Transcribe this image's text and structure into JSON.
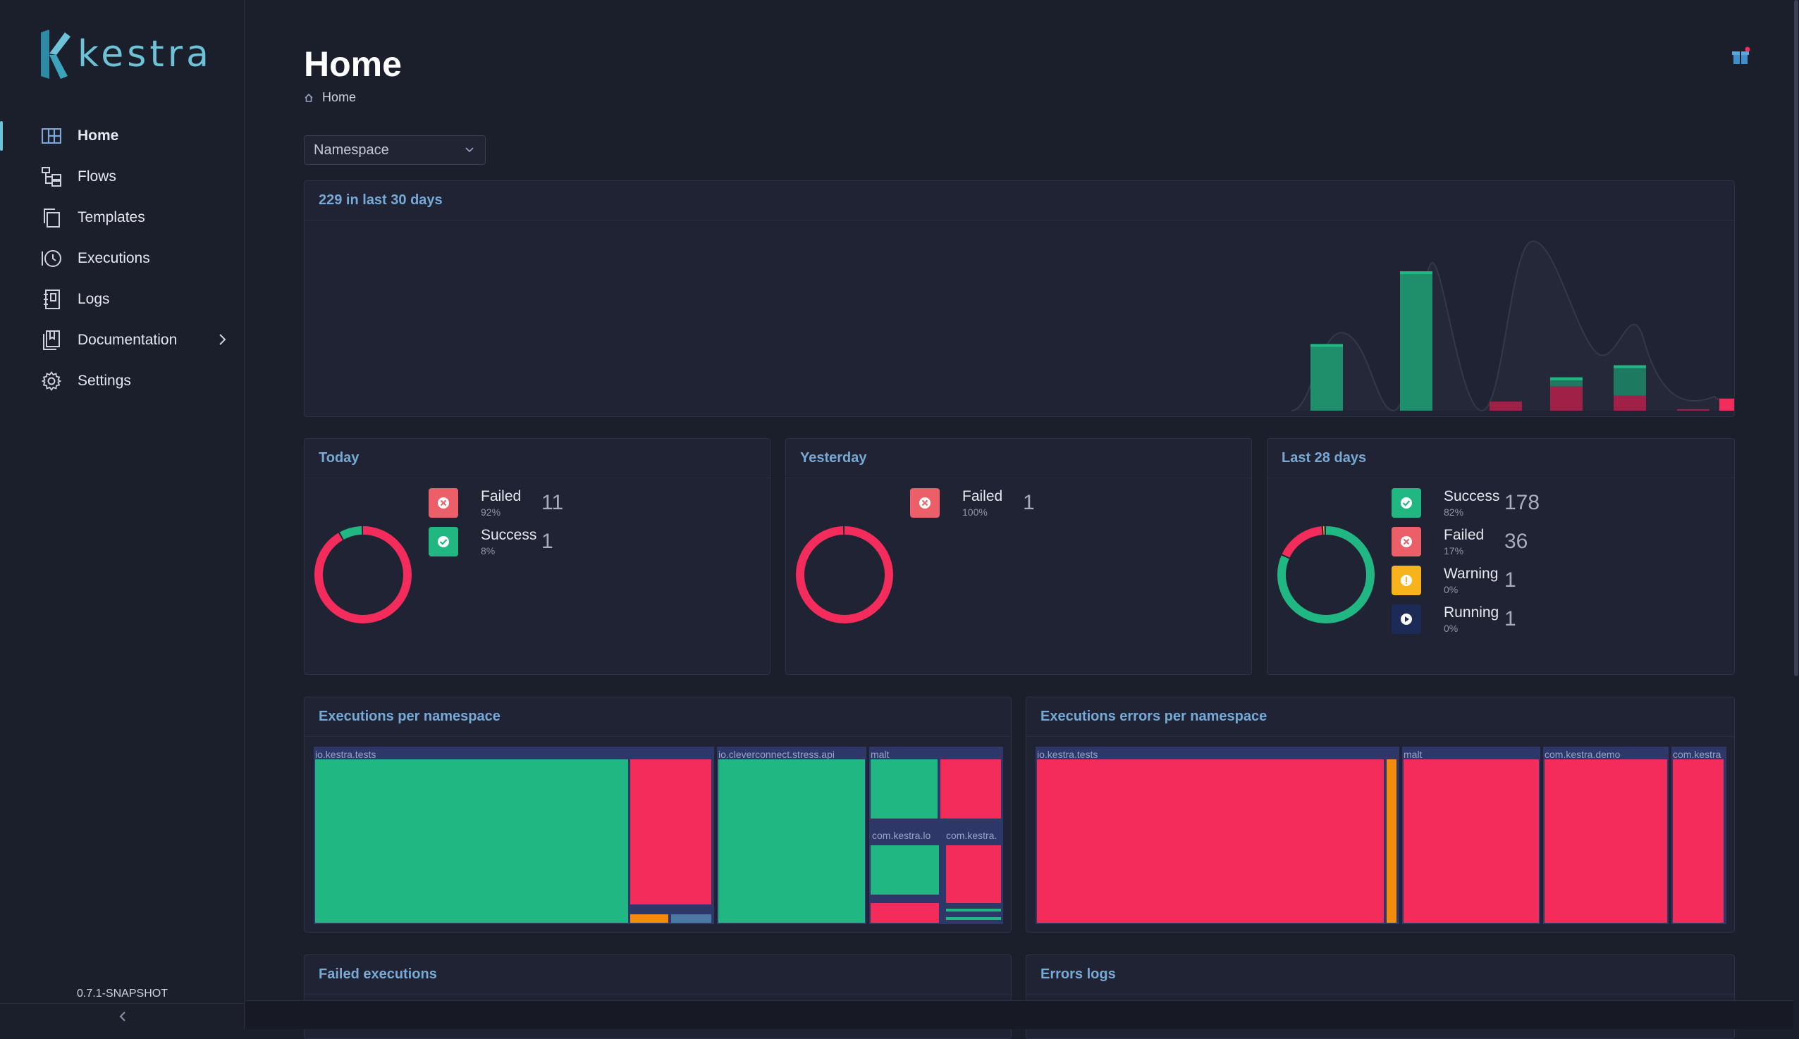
{
  "app": {
    "name": "kestra",
    "version": "0.7.1-SNAPSHOT"
  },
  "colors": {
    "accent": "#6ec2d8",
    "success": "#21b783",
    "failed": "#f42c5b",
    "warning": "#f6b31c",
    "running": "#1c2a58",
    "orange": "#f58b0b",
    "steel": "#4c79a4"
  },
  "sidebar": {
    "items": [
      {
        "label": "Home",
        "icon": "grid-icon",
        "active": true
      },
      {
        "label": "Flows",
        "icon": "flow-tree-icon"
      },
      {
        "label": "Templates",
        "icon": "copy-icon"
      },
      {
        "label": "Executions",
        "icon": "history-icon"
      },
      {
        "label": "Logs",
        "icon": "notebook-icon"
      },
      {
        "label": "Documentation",
        "icon": "book-icon",
        "has_submenu": true
      },
      {
        "label": "Settings",
        "icon": "gear-icon"
      }
    ],
    "collapse_icon": "chevron-left-icon"
  },
  "header": {
    "title": "Home",
    "breadcrumb": "Home",
    "notification_icon": "gift-icon"
  },
  "filter": {
    "namespace_placeholder": "Namespace"
  },
  "overview": {
    "title": "229 in last 30 days"
  },
  "chart_data": {
    "type": "bar",
    "title": "229 in last 30 days",
    "grid": false,
    "legend": "none",
    "series": [
      {
        "name": "SUCCESS",
        "values": [
          22,
          46,
          0,
          3,
          10,
          0,
          0
        ]
      },
      {
        "name": "FAILED",
        "values": [
          0,
          0,
          3,
          8,
          5,
          0.5,
          4
        ]
      }
    ],
    "ylim": [
      0,
      50
    ]
  },
  "today": {
    "title": "Today",
    "items": [
      {
        "label": "Failed",
        "pct": "92%",
        "count": "11",
        "status": "failed",
        "icon": "x-circle-icon",
        "fraction": 0.92
      },
      {
        "label": "Success",
        "pct": "8%",
        "count": "1",
        "status": "success",
        "icon": "check-circle-icon",
        "fraction": 0.08
      }
    ]
  },
  "yesterday": {
    "title": "Yesterday",
    "items": [
      {
        "label": "Failed",
        "pct": "100%",
        "count": "1",
        "status": "failed",
        "icon": "x-circle-icon",
        "fraction": 1.0
      }
    ]
  },
  "last28": {
    "title": "Last 28 days",
    "items": [
      {
        "label": "Success",
        "pct": "82%",
        "count": "178",
        "status": "success",
        "icon": "check-circle-icon",
        "fraction": 0.82
      },
      {
        "label": "Failed",
        "pct": "17%",
        "count": "36",
        "status": "failed",
        "icon": "x-circle-icon",
        "fraction": 0.17
      },
      {
        "label": "Warning",
        "pct": "0%",
        "count": "1",
        "status": "warning",
        "icon": "exclamation-icon",
        "fraction": 0.005
      },
      {
        "label": "Running",
        "pct": "0%",
        "count": "1",
        "status": "running",
        "icon": "play-icon",
        "fraction": 0.005
      }
    ]
  },
  "exec_ns": {
    "title": "Executions per namespace",
    "groups": [
      "io.kestra.tests",
      "io.cleverconnect.stress.api",
      "malt",
      "com.kestra.lo",
      "com.kestra."
    ]
  },
  "err_ns": {
    "title": "Executions errors per namespace",
    "groups": [
      "io.kestra.tests",
      "malt",
      "com.kestra.demo",
      "com.kestra"
    ]
  },
  "failed_exec": {
    "title": "Failed executions"
  },
  "errors_logs": {
    "title": "Errors logs"
  }
}
